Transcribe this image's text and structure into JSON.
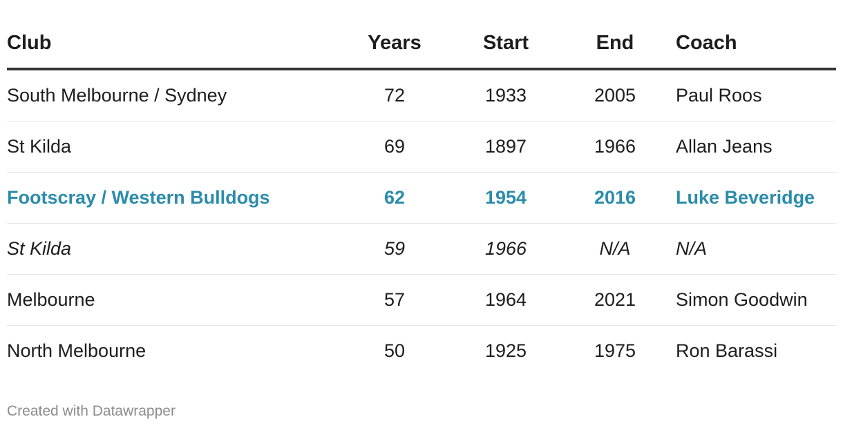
{
  "chart_data": {
    "type": "table",
    "columns": [
      "Club",
      "Years",
      "Start",
      "End",
      "Coach"
    ],
    "rows": [
      {
        "club": "South Melbourne / Sydney",
        "years": "72",
        "start": "1933",
        "end": "2005",
        "coach": "Paul Roos",
        "style": "normal"
      },
      {
        "club": "St Kilda",
        "years": "69",
        "start": "1897",
        "end": "1966",
        "coach": "Allan Jeans",
        "style": "normal"
      },
      {
        "club": "Footscray / Western Bulldogs",
        "years": "62",
        "start": "1954",
        "end": "2016",
        "coach": "Luke Beveridge",
        "style": "highlight"
      },
      {
        "club": "St Kilda",
        "years": "59",
        "start": "1966",
        "end": "N/A",
        "coach": "N/A",
        "style": "italic"
      },
      {
        "club": "Melbourne",
        "years": "57",
        "start": "1964",
        "end": "2021",
        "coach": "Simon Goodwin",
        "style": "normal"
      },
      {
        "club": "North Melbourne",
        "years": "50",
        "start": "1925",
        "end": "1975",
        "coach": "Ron Barassi",
        "style": "normal"
      }
    ],
    "highlight_color": "#2b8cab"
  },
  "footer": {
    "credit": "Created with Datawrapper"
  }
}
